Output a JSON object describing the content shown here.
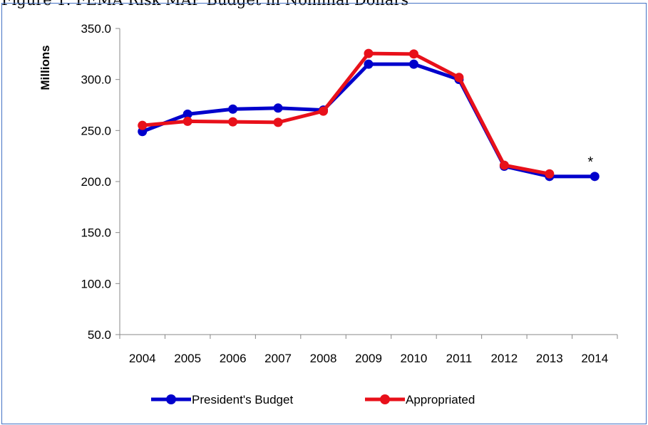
{
  "figure_title": "Figure 1. FEMA Risk MAP Budget in Nominal Dollars",
  "chart_data": {
    "type": "line",
    "title": "",
    "xlabel": "",
    "ylabel": "Millions",
    "ylim": [
      50,
      350
    ],
    "yticks": [
      "50.0",
      "100.0",
      "150.0",
      "200.0",
      "250.0",
      "300.0",
      "350.0"
    ],
    "categories": [
      "2004",
      "2005",
      "2006",
      "2007",
      "2008",
      "2009",
      "2010",
      "2011",
      "2012",
      "2013",
      "2014"
    ],
    "series": [
      {
        "name": "President's Budget",
        "color": "#0000cc",
        "values": [
          249,
          266,
          271,
          272,
          270,
          315,
          315,
          300,
          215,
          205,
          205
        ]
      },
      {
        "name": "Appropriated",
        "color": "#e8101a",
        "values": [
          255,
          259,
          258.5,
          258,
          269,
          325.5,
          325,
          302,
          216,
          207.5,
          null
        ]
      }
    ],
    "annotations": [
      {
        "text": "*",
        "category": "2014"
      }
    ],
    "grid": false,
    "legend_position": "bottom"
  }
}
